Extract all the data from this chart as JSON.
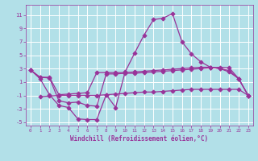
{
  "xlabel": "Windchill (Refroidissement éolien,°C)",
  "background_color": "#b2e0e8",
  "line_color": "#993399",
  "grid_color": "#ffffff",
  "xlim": [
    -0.5,
    23.5
  ],
  "ylim": [
    -5.5,
    12.5
  ],
  "yticks": [
    -5,
    -3,
    -1,
    1,
    3,
    5,
    7,
    9,
    11
  ],
  "xticks": [
    0,
    1,
    2,
    3,
    4,
    5,
    6,
    7,
    8,
    9,
    10,
    11,
    12,
    13,
    14,
    15,
    16,
    17,
    18,
    19,
    20,
    21,
    22,
    23
  ],
  "line1_x": [
    0,
    1,
    2,
    3,
    4,
    5,
    6,
    7,
    8,
    9,
    10,
    11,
    12,
    13,
    14,
    15,
    16,
    17,
    18,
    19,
    20,
    21,
    22,
    23
  ],
  "line1_y": [
    2.8,
    1.5,
    -0.9,
    -2.5,
    -2.8,
    -4.5,
    -4.6,
    -4.6,
    -0.9,
    -2.8,
    2.5,
    5.3,
    8.0,
    10.3,
    10.5,
    11.2,
    7.0,
    5.2,
    4.0,
    3.2,
    3.0,
    2.5,
    1.5,
    -1.0
  ],
  "line2_x": [
    0,
    1,
    2,
    3,
    4,
    5,
    6,
    7,
    8,
    9,
    10,
    11,
    12,
    13,
    14,
    15,
    16,
    17,
    18,
    19,
    20,
    21,
    22,
    23
  ],
  "line2_y": [
    2.8,
    1.7,
    1.7,
    -0.9,
    -0.8,
    -0.7,
    -0.6,
    2.4,
    2.4,
    2.4,
    2.4,
    2.5,
    2.6,
    2.7,
    2.8,
    2.9,
    3.0,
    3.1,
    3.2,
    3.2,
    3.0,
    2.7,
    1.5,
    -1.0
  ],
  "line3_x": [
    1,
    2,
    3,
    4,
    5,
    6,
    7,
    8,
    9,
    10,
    11,
    12,
    13,
    14,
    15,
    16,
    17,
    18,
    19,
    20,
    21,
    22,
    23
  ],
  "line3_y": [
    -1.2,
    -1.1,
    -1.0,
    -1.0,
    -1.0,
    -1.0,
    -1.0,
    -0.9,
    -0.8,
    -0.7,
    -0.6,
    -0.5,
    -0.5,
    -0.4,
    -0.3,
    -0.2,
    -0.1,
    -0.1,
    -0.1,
    -0.1,
    -0.1,
    -0.1,
    -1.0
  ],
  "line4_x": [
    0,
    1,
    2,
    3,
    4,
    5,
    6,
    7,
    8,
    9,
    10,
    11,
    12,
    13,
    14,
    15,
    16,
    17,
    18,
    19,
    20,
    21,
    22,
    23
  ],
  "line4_y": [
    2.8,
    1.7,
    1.6,
    -1.8,
    -2.1,
    -2.0,
    -2.5,
    -2.6,
    2.2,
    2.2,
    2.3,
    2.3,
    2.4,
    2.5,
    2.6,
    2.7,
    2.8,
    2.9,
    3.0,
    3.1,
    3.2,
    3.1,
    1.5,
    -1.0
  ]
}
